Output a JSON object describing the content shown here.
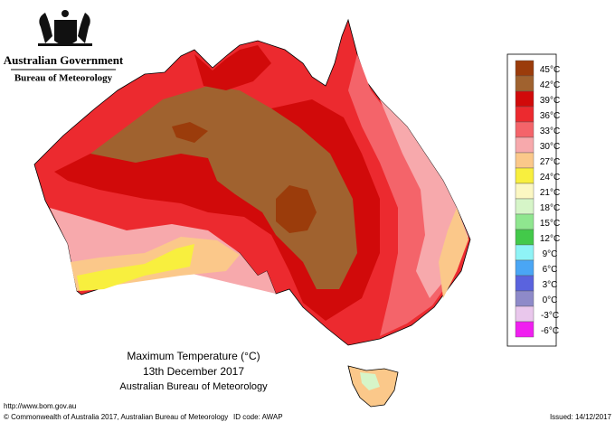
{
  "header": {
    "org": "Australian Government",
    "bureau": "Bureau of Meteorology"
  },
  "title": {
    "line1": "Maximum Temperature (°C)",
    "line2": "13th December 2017",
    "line3": "Australian Bureau of Meteorology"
  },
  "legend": {
    "items": [
      {
        "label": "45°C",
        "color": "#9b3c0b"
      },
      {
        "label": "42°C",
        "color": "#a0622f"
      },
      {
        "label": "39°C",
        "color": "#d10a0a"
      },
      {
        "label": "36°C",
        "color": "#ec2a2f"
      },
      {
        "label": "33°C",
        "color": "#f4646a"
      },
      {
        "label": "30°C",
        "color": "#f7a9ac"
      },
      {
        "label": "27°C",
        "color": "#fbc88a"
      },
      {
        "label": "24°C",
        "color": "#f8ef3e"
      },
      {
        "label": "21°C",
        "color": "#fbf7c2"
      },
      {
        "label": "18°C",
        "color": "#d6f5c8"
      },
      {
        "label": "15°C",
        "color": "#8fe68f"
      },
      {
        "label": "12°C",
        "color": "#43c94a"
      },
      {
        "label": "9°C",
        "color": "#8ff3f6"
      },
      {
        "label": "6°C",
        "color": "#4aa6f5"
      },
      {
        "label": "3°C",
        "color": "#5a63de"
      },
      {
        "label": "0°C",
        "color": "#8e8ac9"
      },
      {
        "label": "-3°C",
        "color": "#e9c7ec"
      },
      {
        "label": "-6°C",
        "color": "#f01ff0"
      }
    ]
  },
  "footer": {
    "url": "http://www.bom.gov.au",
    "copyright": "© Commonwealth of Australia 2017, Australian Bureau of Meteorology",
    "id": "ID code: AWAP",
    "issued": "Issued: 14/12/2017"
  }
}
